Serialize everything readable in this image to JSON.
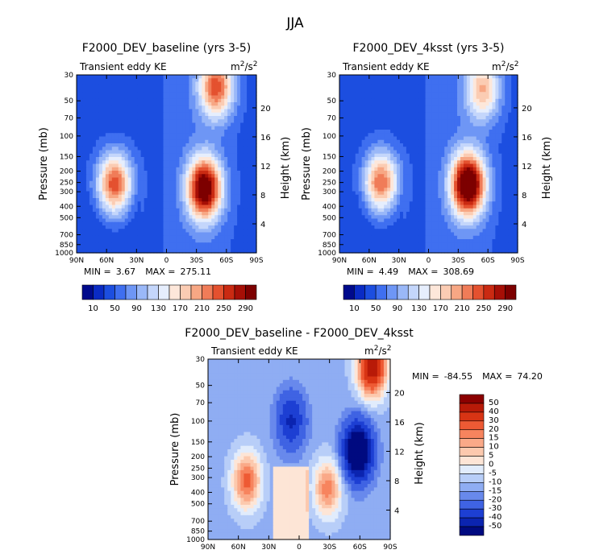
{
  "chart_data": {
    "type": "heatmap",
    "season": "JJA",
    "xticks": [
      "90N",
      "60N",
      "30N",
      "0",
      "30S",
      "60S",
      "90S"
    ],
    "xtick_values": [
      90,
      60,
      30,
      0,
      -30,
      -60,
      -90
    ],
    "yticks": [
      "30",
      "50",
      "70",
      "100",
      "150",
      "200",
      "250",
      "300",
      "400",
      "500",
      "700",
      "850",
      "1000"
    ],
    "ytick_values": [
      30,
      50,
      70,
      100,
      150,
      200,
      250,
      300,
      400,
      500,
      700,
      850,
      1000
    ],
    "ylabel": "Pressure (mb)",
    "ylabel_right": "Height (km)",
    "height_ticks": [
      "20",
      "16",
      "12",
      "8",
      "4"
    ],
    "height_tick_values": [
      20,
      16,
      12,
      8,
      4
    ],
    "xlim": [
      90,
      -90
    ],
    "ylim": [
      1000,
      30
    ],
    "panels": [
      {
        "title": "F2000_DEV_baseline (yrs 3-5)",
        "subtitle": "Transient eddy KE",
        "units_base": "m",
        "units_sup1": "2",
        "units_mid": "/s",
        "units_sup2": "2",
        "min_label": "MIN =",
        "min_value": "3.67",
        "max_label": "MAX =",
        "max_value": "275.11",
        "min": 3.67,
        "max": 275.11,
        "features": [
          {
            "lat": 52,
            "p": 260,
            "peak": 205
          },
          {
            "lat": -38,
            "p": 280,
            "peak": 275
          },
          {
            "lat": -50,
            "p": 38,
            "peak": 190
          }
        ]
      },
      {
        "title": "F2000_DEV_4ksst (yrs 3-5)",
        "subtitle": "Transient eddy KE",
        "units_base": "m",
        "units_sup1": "2",
        "units_mid": "/s",
        "units_sup2": "2",
        "min_label": "MIN =",
        "min_value": "4.49",
        "max_label": "MAX =",
        "max_value": "308.69",
        "min": 4.49,
        "max": 308.69,
        "features": [
          {
            "lat": 48,
            "p": 250,
            "peak": 190
          },
          {
            "lat": -40,
            "p": 260,
            "peak": 305
          },
          {
            "lat": -55,
            "p": 40,
            "peak": 140
          }
        ]
      },
      {
        "title": "F2000_DEV_baseline - F2000_DEV_4ksst",
        "subtitle": "Transient eddy KE",
        "units_base": "m",
        "units_sup1": "2",
        "units_mid": "/s",
        "units_sup2": "2",
        "min_label": "MIN =",
        "min_value": "-84.55",
        "max_label": "MAX =",
        "max_value": "74.20",
        "min": -84.55,
        "max": 74.2,
        "features": [
          {
            "lat": 52,
            "p": 320,
            "peak": 35
          },
          {
            "lat": -28,
            "p": 370,
            "peak": 30
          },
          {
            "lat": -72,
            "p": 35,
            "peak": 60
          },
          {
            "lat": -58,
            "p": 180,
            "peak": -65
          },
          {
            "lat": 8,
            "p": 100,
            "peak": -30
          }
        ]
      }
    ],
    "colorbar_abs": {
      "levels": [
        "10",
        "50",
        "90",
        "130",
        "170",
        "210",
        "250",
        "290"
      ],
      "level_values": [
        10,
        50,
        90,
        130,
        170,
        210,
        250,
        290
      ],
      "colors": [
        "#000a8c",
        "#0a2bc4",
        "#1c4ee0",
        "#3f6ff0",
        "#6e96f5",
        "#9ab8f8",
        "#c4d6fb",
        "#e6eefd",
        "#fde7da",
        "#fbccb3",
        "#f7a784",
        "#f07c58",
        "#e4512f",
        "#ca2a12",
        "#a60f06",
        "#7d0000"
      ]
    },
    "colorbar_diff": {
      "levels": [
        "50",
        "40",
        "30",
        "20",
        "15",
        "10",
        "5",
        "0",
        "-5",
        "-10",
        "-15",
        "-20",
        "-30",
        "-40",
        "-50"
      ],
      "level_values": [
        50,
        40,
        30,
        20,
        15,
        10,
        5,
        0,
        -5,
        -10,
        -15,
        -20,
        -30,
        -40,
        -50
      ],
      "colors": [
        "#8b0000",
        "#b81a08",
        "#d83414",
        "#ee5a34",
        "#f7845e",
        "#faa988",
        "#fcc9ae",
        "#fde5d6",
        "#e1ecfc",
        "#b8cef8",
        "#8fadf3",
        "#6889ec",
        "#3f63e3",
        "#1d3fd3",
        "#0b24b0",
        "#000a80"
      ]
    }
  }
}
